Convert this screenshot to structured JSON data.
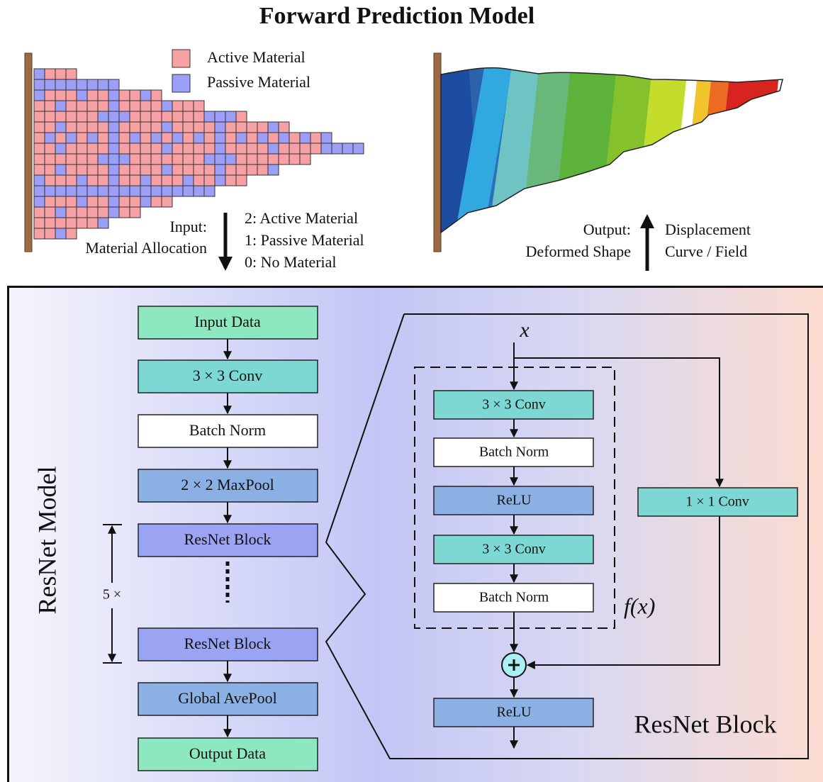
{
  "title": "Forward Prediction Model",
  "legend": [
    "Active Material",
    "Passive Material"
  ],
  "input": {
    "label": [
      "Input:",
      "Material Allocation"
    ],
    "codes": [
      "2: Active Material",
      "1: Passive Material",
      "0: No Material"
    ]
  },
  "output": {
    "label": [
      "Output:",
      "Deformed Shape"
    ],
    "target": [
      "Displacement",
      "Curve / Field"
    ]
  },
  "model": {
    "title": "ResNet Model",
    "repeat": "5 ×",
    "layers": [
      "Input Data",
      "3 × 3 Conv",
      "Batch Norm",
      "2 × 2 MaxPool",
      "ResNet Block",
      "ResNet Block",
      "Global AvePool",
      "Output Data"
    ]
  },
  "block": {
    "title": "ResNet Block",
    "input": "x",
    "function": "f(x)",
    "shortcut": "1 × 1 Conv",
    "activation": "ReLU",
    "residual": [
      "3 × 3 Conv",
      "Batch Norm",
      "ReLU",
      "3 × 3 Conv",
      "Batch Norm"
    ]
  }
}
